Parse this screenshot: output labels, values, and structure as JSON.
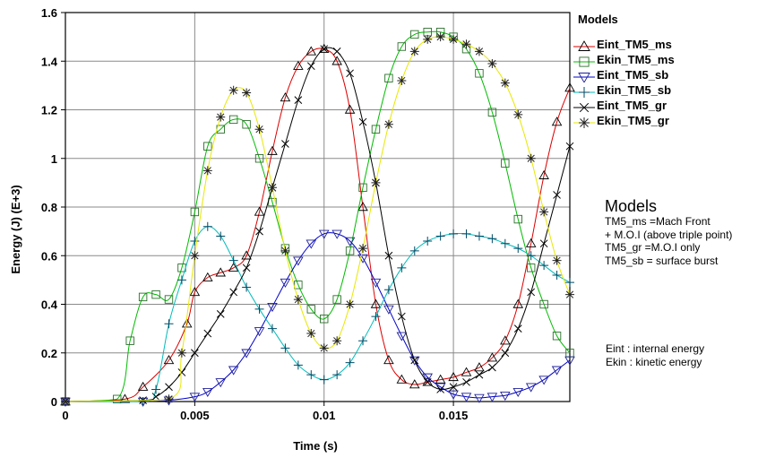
{
  "legend": {
    "title": "Models",
    "items": [
      {
        "label": "Eint_TM5_ms",
        "marker": "triangle-up",
        "color": "#dd0000"
      },
      {
        "label": "Ekin_TM5_ms",
        "marker": "square",
        "color": "#00bb00"
      },
      {
        "label": "Eint_TM5_sb",
        "marker": "triangle-down",
        "color": "#0000cc"
      },
      {
        "label": "Ekin_TM5_sb",
        "marker": "plus",
        "color": "#00bbbb"
      },
      {
        "label": "Eint_TM5_gr",
        "marker": "x",
        "color": "#000000"
      },
      {
        "label": "Ekin_TM5_gr",
        "marker": "star",
        "color": "#e8e800"
      }
    ]
  },
  "notes": {
    "models_heading": "Models",
    "models_lines": [
      "TM5_ms =Mach Front",
      "+ M.O.I (above triple point)",
      "TM5_gr =M.O.I only",
      "TM5_sb  = surface burst"
    ],
    "energy_lines": [
      "Eint : internal energy",
      "Ekin : kinetic energy"
    ]
  },
  "chart_data": {
    "type": "line",
    "title": "",
    "xlabel": "Time (s)",
    "ylabel": "Energy (J) (E+3)",
    "xlim": [
      0,
      0.0195
    ],
    "ylim": [
      0,
      1.6
    ],
    "x_ticks": [
      0,
      0.005,
      0.01,
      0.015
    ],
    "x_tick_labels": [
      "0",
      "0.005",
      "0.01",
      "0.015"
    ],
    "y_ticks": [
      0,
      0.2,
      0.4,
      0.6,
      0.8,
      1,
      1.2,
      1.4,
      1.6
    ],
    "y_tick_labels": [
      "0",
      "0.2",
      "0.4",
      "0.6",
      "0.8",
      "1",
      "1.2",
      "1.4",
      "1.6"
    ],
    "grid": true,
    "legend_position": "right",
    "series": [
      {
        "name": "Eint_TM5_ms",
        "color": "#dd0000",
        "marker": "triangle-up",
        "x": [
          0,
          0.0023,
          0.003,
          0.004,
          0.0047,
          0.005,
          0.0055,
          0.006,
          0.0065,
          0.007,
          0.0075,
          0.008,
          0.0085,
          0.009,
          0.0095,
          0.01,
          0.0105,
          0.011,
          0.0115,
          0.012,
          0.0125,
          0.013,
          0.0135,
          0.014,
          0.0145,
          0.015,
          0.0155,
          0.016,
          0.0165,
          0.017,
          0.0175,
          0.018,
          0.0185,
          0.019,
          0.0195
        ],
        "y": [
          0,
          0.01,
          0.06,
          0.17,
          0.32,
          0.45,
          0.51,
          0.53,
          0.55,
          0.6,
          0.78,
          1.03,
          1.25,
          1.38,
          1.44,
          1.45,
          1.4,
          1.2,
          0.8,
          0.4,
          0.17,
          0.09,
          0.07,
          0.08,
          0.09,
          0.1,
          0.12,
          0.14,
          0.18,
          0.25,
          0.4,
          0.65,
          0.93,
          1.15,
          1.29
        ]
      },
      {
        "name": "Ekin_TM5_ms",
        "color": "#00bb00",
        "marker": "square",
        "x": [
          0,
          0.002,
          0.0025,
          0.003,
          0.0035,
          0.004,
          0.0045,
          0.005,
          0.0055,
          0.006,
          0.0065,
          0.007,
          0.0075,
          0.008,
          0.0085,
          0.009,
          0.0095,
          0.01,
          0.0105,
          0.011,
          0.0115,
          0.012,
          0.0125,
          0.013,
          0.0135,
          0.014,
          0.0145,
          0.015,
          0.0155,
          0.016,
          0.0165,
          0.017,
          0.0175,
          0.018,
          0.0185,
          0.019,
          0.0195
        ],
        "y": [
          0,
          0.01,
          0.25,
          0.43,
          0.44,
          0.42,
          0.55,
          0.78,
          1.05,
          1.12,
          1.16,
          1.14,
          1.0,
          0.82,
          0.63,
          0.48,
          0.38,
          0.34,
          0.42,
          0.62,
          0.88,
          1.12,
          1.33,
          1.46,
          1.51,
          1.52,
          1.52,
          1.5,
          1.45,
          1.35,
          1.19,
          0.98,
          0.75,
          0.55,
          0.4,
          0.27,
          0.2
        ]
      },
      {
        "name": "Eint_TM5_sb",
        "color": "#0000cc",
        "marker": "triangle-down",
        "x": [
          0,
          0.003,
          0.004,
          0.005,
          0.0055,
          0.006,
          0.0065,
          0.007,
          0.0075,
          0.008,
          0.0085,
          0.009,
          0.0095,
          0.01,
          0.0105,
          0.011,
          0.0115,
          0.012,
          0.0125,
          0.013,
          0.0135,
          0.014,
          0.0145,
          0.015,
          0.0155,
          0.016,
          0.0165,
          0.017,
          0.0175,
          0.018,
          0.0185,
          0.019,
          0.0195
        ],
        "y": [
          0,
          0,
          0.005,
          0.02,
          0.04,
          0.08,
          0.13,
          0.2,
          0.29,
          0.39,
          0.49,
          0.58,
          0.65,
          0.69,
          0.69,
          0.66,
          0.59,
          0.49,
          0.38,
          0.27,
          0.17,
          0.1,
          0.06,
          0.03,
          0.02,
          0.015,
          0.02,
          0.025,
          0.04,
          0.06,
          0.09,
          0.13,
          0.17
        ]
      },
      {
        "name": "Ekin_TM5_sb",
        "color": "#00bbbb",
        "marker": "plus",
        "x": [
          0,
          0.003,
          0.0035,
          0.004,
          0.0045,
          0.005,
          0.0055,
          0.006,
          0.0065,
          0.007,
          0.0075,
          0.008,
          0.0085,
          0.009,
          0.0095,
          0.01,
          0.0105,
          0.011,
          0.0115,
          0.012,
          0.0125,
          0.013,
          0.0135,
          0.014,
          0.0145,
          0.015,
          0.0155,
          0.016,
          0.0165,
          0.017,
          0.0175,
          0.018,
          0.0185,
          0.019,
          0.0195
        ],
        "y": [
          0,
          0,
          0.05,
          0.32,
          0.5,
          0.66,
          0.72,
          0.68,
          0.58,
          0.47,
          0.38,
          0.3,
          0.22,
          0.15,
          0.11,
          0.09,
          0.11,
          0.16,
          0.25,
          0.35,
          0.46,
          0.55,
          0.62,
          0.66,
          0.68,
          0.69,
          0.69,
          0.68,
          0.67,
          0.65,
          0.63,
          0.6,
          0.56,
          0.52,
          0.49
        ]
      },
      {
        "name": "Eint_TM5_gr",
        "color": "#000000",
        "marker": "x",
        "x": [
          0,
          0.003,
          0.0035,
          0.004,
          0.0045,
          0.005,
          0.0055,
          0.006,
          0.0065,
          0.007,
          0.0075,
          0.008,
          0.0085,
          0.009,
          0.0095,
          0.01,
          0.0105,
          0.011,
          0.0115,
          0.012,
          0.0125,
          0.013,
          0.0135,
          0.014,
          0.0145,
          0.015,
          0.0155,
          0.016,
          0.0165,
          0.017,
          0.0175,
          0.018,
          0.0185,
          0.019,
          0.0195
        ],
        "y": [
          0,
          0.005,
          0.02,
          0.06,
          0.12,
          0.2,
          0.28,
          0.36,
          0.45,
          0.55,
          0.7,
          0.88,
          1.06,
          1.24,
          1.38,
          1.45,
          1.44,
          1.35,
          1.15,
          0.9,
          0.6,
          0.35,
          0.17,
          0.08,
          0.05,
          0.06,
          0.08,
          0.11,
          0.14,
          0.2,
          0.3,
          0.45,
          0.65,
          0.85,
          1.05
        ]
      },
      {
        "name": "Ekin_TM5_gr",
        "color": "#e8e800",
        "marker": "star",
        "x": [
          0,
          0.004,
          0.0045,
          0.005,
          0.0055,
          0.006,
          0.0065,
          0.007,
          0.0075,
          0.008,
          0.0085,
          0.009,
          0.0095,
          0.01,
          0.0105,
          0.011,
          0.0115,
          0.012,
          0.0125,
          0.013,
          0.0135,
          0.014,
          0.0145,
          0.015,
          0.0155,
          0.016,
          0.0165,
          0.017,
          0.0175,
          0.018,
          0.0185,
          0.019,
          0.0195
        ],
        "y": [
          0,
          0.01,
          0.2,
          0.6,
          0.95,
          1.17,
          1.28,
          1.27,
          1.12,
          0.88,
          0.62,
          0.42,
          0.28,
          0.22,
          0.25,
          0.4,
          0.63,
          0.9,
          1.14,
          1.32,
          1.44,
          1.49,
          1.5,
          1.49,
          1.47,
          1.44,
          1.39,
          1.31,
          1.18,
          1.0,
          0.78,
          0.58,
          0.44
        ]
      }
    ]
  }
}
